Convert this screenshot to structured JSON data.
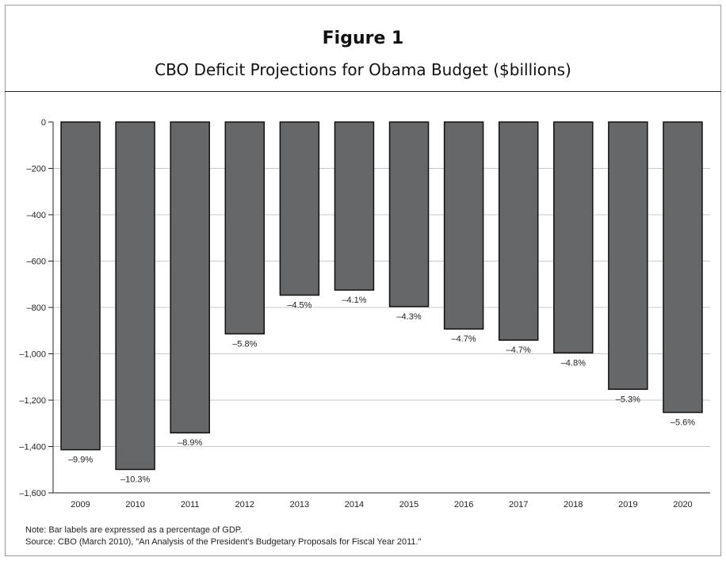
{
  "figure_label": "Figure 1",
  "chart_data": {
    "type": "bar",
    "title": "CBO Deficit Projections for Obama Budget ($billions)",
    "xlabel": "",
    "ylabel": "",
    "categories": [
      "2009",
      "2010",
      "2011",
      "2012",
      "2013",
      "2014",
      "2015",
      "2016",
      "2017",
      "2018",
      "2019",
      "2020"
    ],
    "values": [
      -1414,
      -1499,
      -1341,
      -914,
      -747,
      -725,
      -796,
      -893,
      -941,
      -996,
      -1153,
      -1253
    ],
    "data_labels": [
      "–9.9%",
      "–10.3%",
      "–8.9%",
      "–5.8%",
      "–4.5%",
      "–4.1%",
      "–4.3%",
      "–4.7%",
      "–4.7%",
      "–4.8%",
      "–5.3%",
      "–5.6%"
    ],
    "ylim": [
      -1600,
      0
    ],
    "yticks": [
      0,
      -200,
      -400,
      -600,
      -800,
      -1000,
      -1200,
      -1400,
      -1600
    ],
    "ytick_labels": [
      "0",
      "–200",
      "–400",
      "–600",
      "–800",
      "–1,000",
      "–1,200",
      "–1,400",
      "–1,600"
    ],
    "grid": true,
    "legend": "none",
    "bar_color": "#666769",
    "bar_edge_color": "#111111"
  },
  "notes": {
    "note": "Note: Bar labels are expressed as a percentage of GDP.",
    "source": "Source: CBO (March 2010), \"An Analysis of the President's Budgetary Proposals for Fiscal Year 2011.\""
  }
}
